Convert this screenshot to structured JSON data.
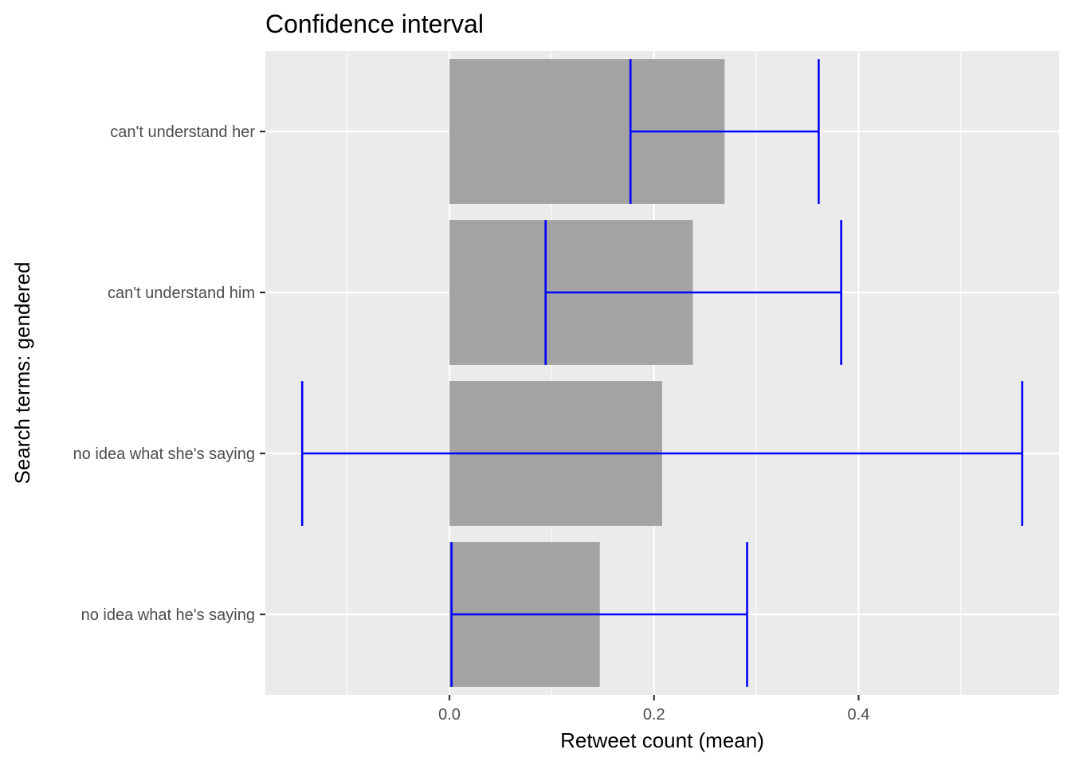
{
  "chart_data": {
    "type": "bar",
    "orientation": "horizontal",
    "title": "Confidence interval",
    "xlabel": "Retweet count (mean)",
    "ylabel": "Search terms: gendered",
    "categories": [
      "can't understand her",
      "can't understand him",
      "no idea what she's saying",
      "no idea what he's saying"
    ],
    "values": [
      0.269,
      0.238,
      0.208,
      0.147
    ],
    "error_bars": [
      {
        "low": 0.177,
        "high": 0.361
      },
      {
        "low": 0.094,
        "high": 0.383
      },
      {
        "low": -0.144,
        "high": 0.56
      },
      {
        "low": 0.002,
        "high": 0.291
      }
    ],
    "xlim": [
      -0.18,
      0.596
    ],
    "xticks": [
      0.0,
      0.2,
      0.4
    ],
    "xtick_labels": [
      "0.0",
      "0.2",
      "0.4"
    ],
    "grid": true,
    "colors": {
      "bar": "#a3a3a3",
      "error_bar": "#0000ff",
      "panel_bg": "#ebebeb",
      "grid": "#ffffff"
    }
  }
}
